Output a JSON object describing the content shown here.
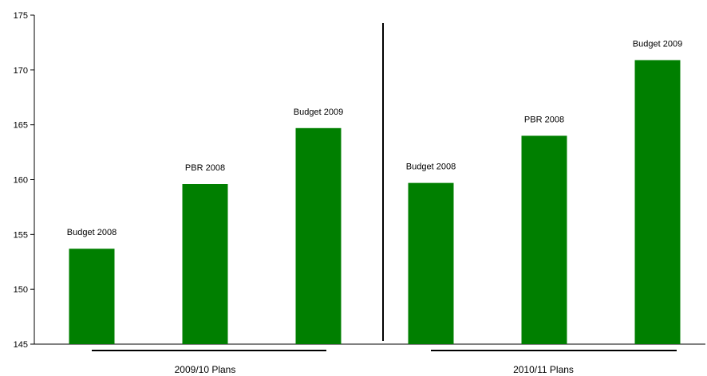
{
  "chart_data": {
    "type": "bar",
    "title": "",
    "xlabel": "",
    "ylabel": "",
    "ylim": [
      145,
      175
    ],
    "yticks": [
      145,
      150,
      155,
      160,
      165,
      170,
      175
    ],
    "grid": false,
    "legend": "none",
    "bar_color": "#007f00",
    "groups": [
      {
        "name": "2009/10 Plans",
        "bars": [
          {
            "label": "Budget 2008",
            "value": 153.7
          },
          {
            "label": "PBR 2008",
            "value": 159.6
          },
          {
            "label": "Budget 2009",
            "value": 164.7
          }
        ]
      },
      {
        "name": "2010/11 Plans",
        "bars": [
          {
            "label": "Budget 2008",
            "value": 159.7
          },
          {
            "label": "PBR 2008",
            "value": 164.0
          },
          {
            "label": "Budget 2009",
            "value": 170.9
          }
        ]
      }
    ]
  }
}
